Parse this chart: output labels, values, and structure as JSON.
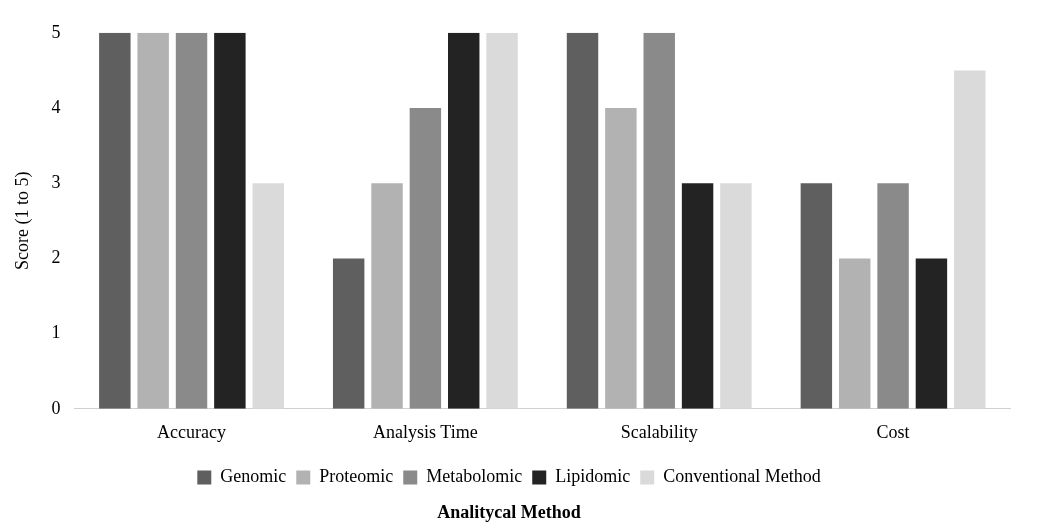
{
  "chart_data": {
    "type": "bar",
    "xlabel": "Analitycal Method",
    "ylabel": "Score (1 to 5)",
    "categories": [
      "Accuracy",
      "Analysis Time",
      "Scalability",
      "Cost"
    ],
    "series": [
      {
        "name": "Genomic",
        "color": "#5f5f5f",
        "values": [
          5,
          2,
          5,
          3
        ]
      },
      {
        "name": "Proteomic",
        "color": "#b2b2b2",
        "values": [
          5,
          3,
          4,
          2
        ]
      },
      {
        "name": "Metabolomic",
        "color": "#8a8a8a",
        "values": [
          5,
          4,
          5,
          3
        ]
      },
      {
        "name": "Lipidomic",
        "color": "#232323",
        "values": [
          5,
          5,
          3,
          2
        ]
      },
      {
        "name": "Conventional Method",
        "color": "#dadada",
        "values": [
          3,
          5,
          3,
          4.5
        ]
      }
    ],
    "ylim": [
      0,
      5
    ],
    "yticks": [
      0,
      1,
      2,
      3,
      4,
      5
    ],
    "grid": false,
    "legend": "bottom"
  }
}
